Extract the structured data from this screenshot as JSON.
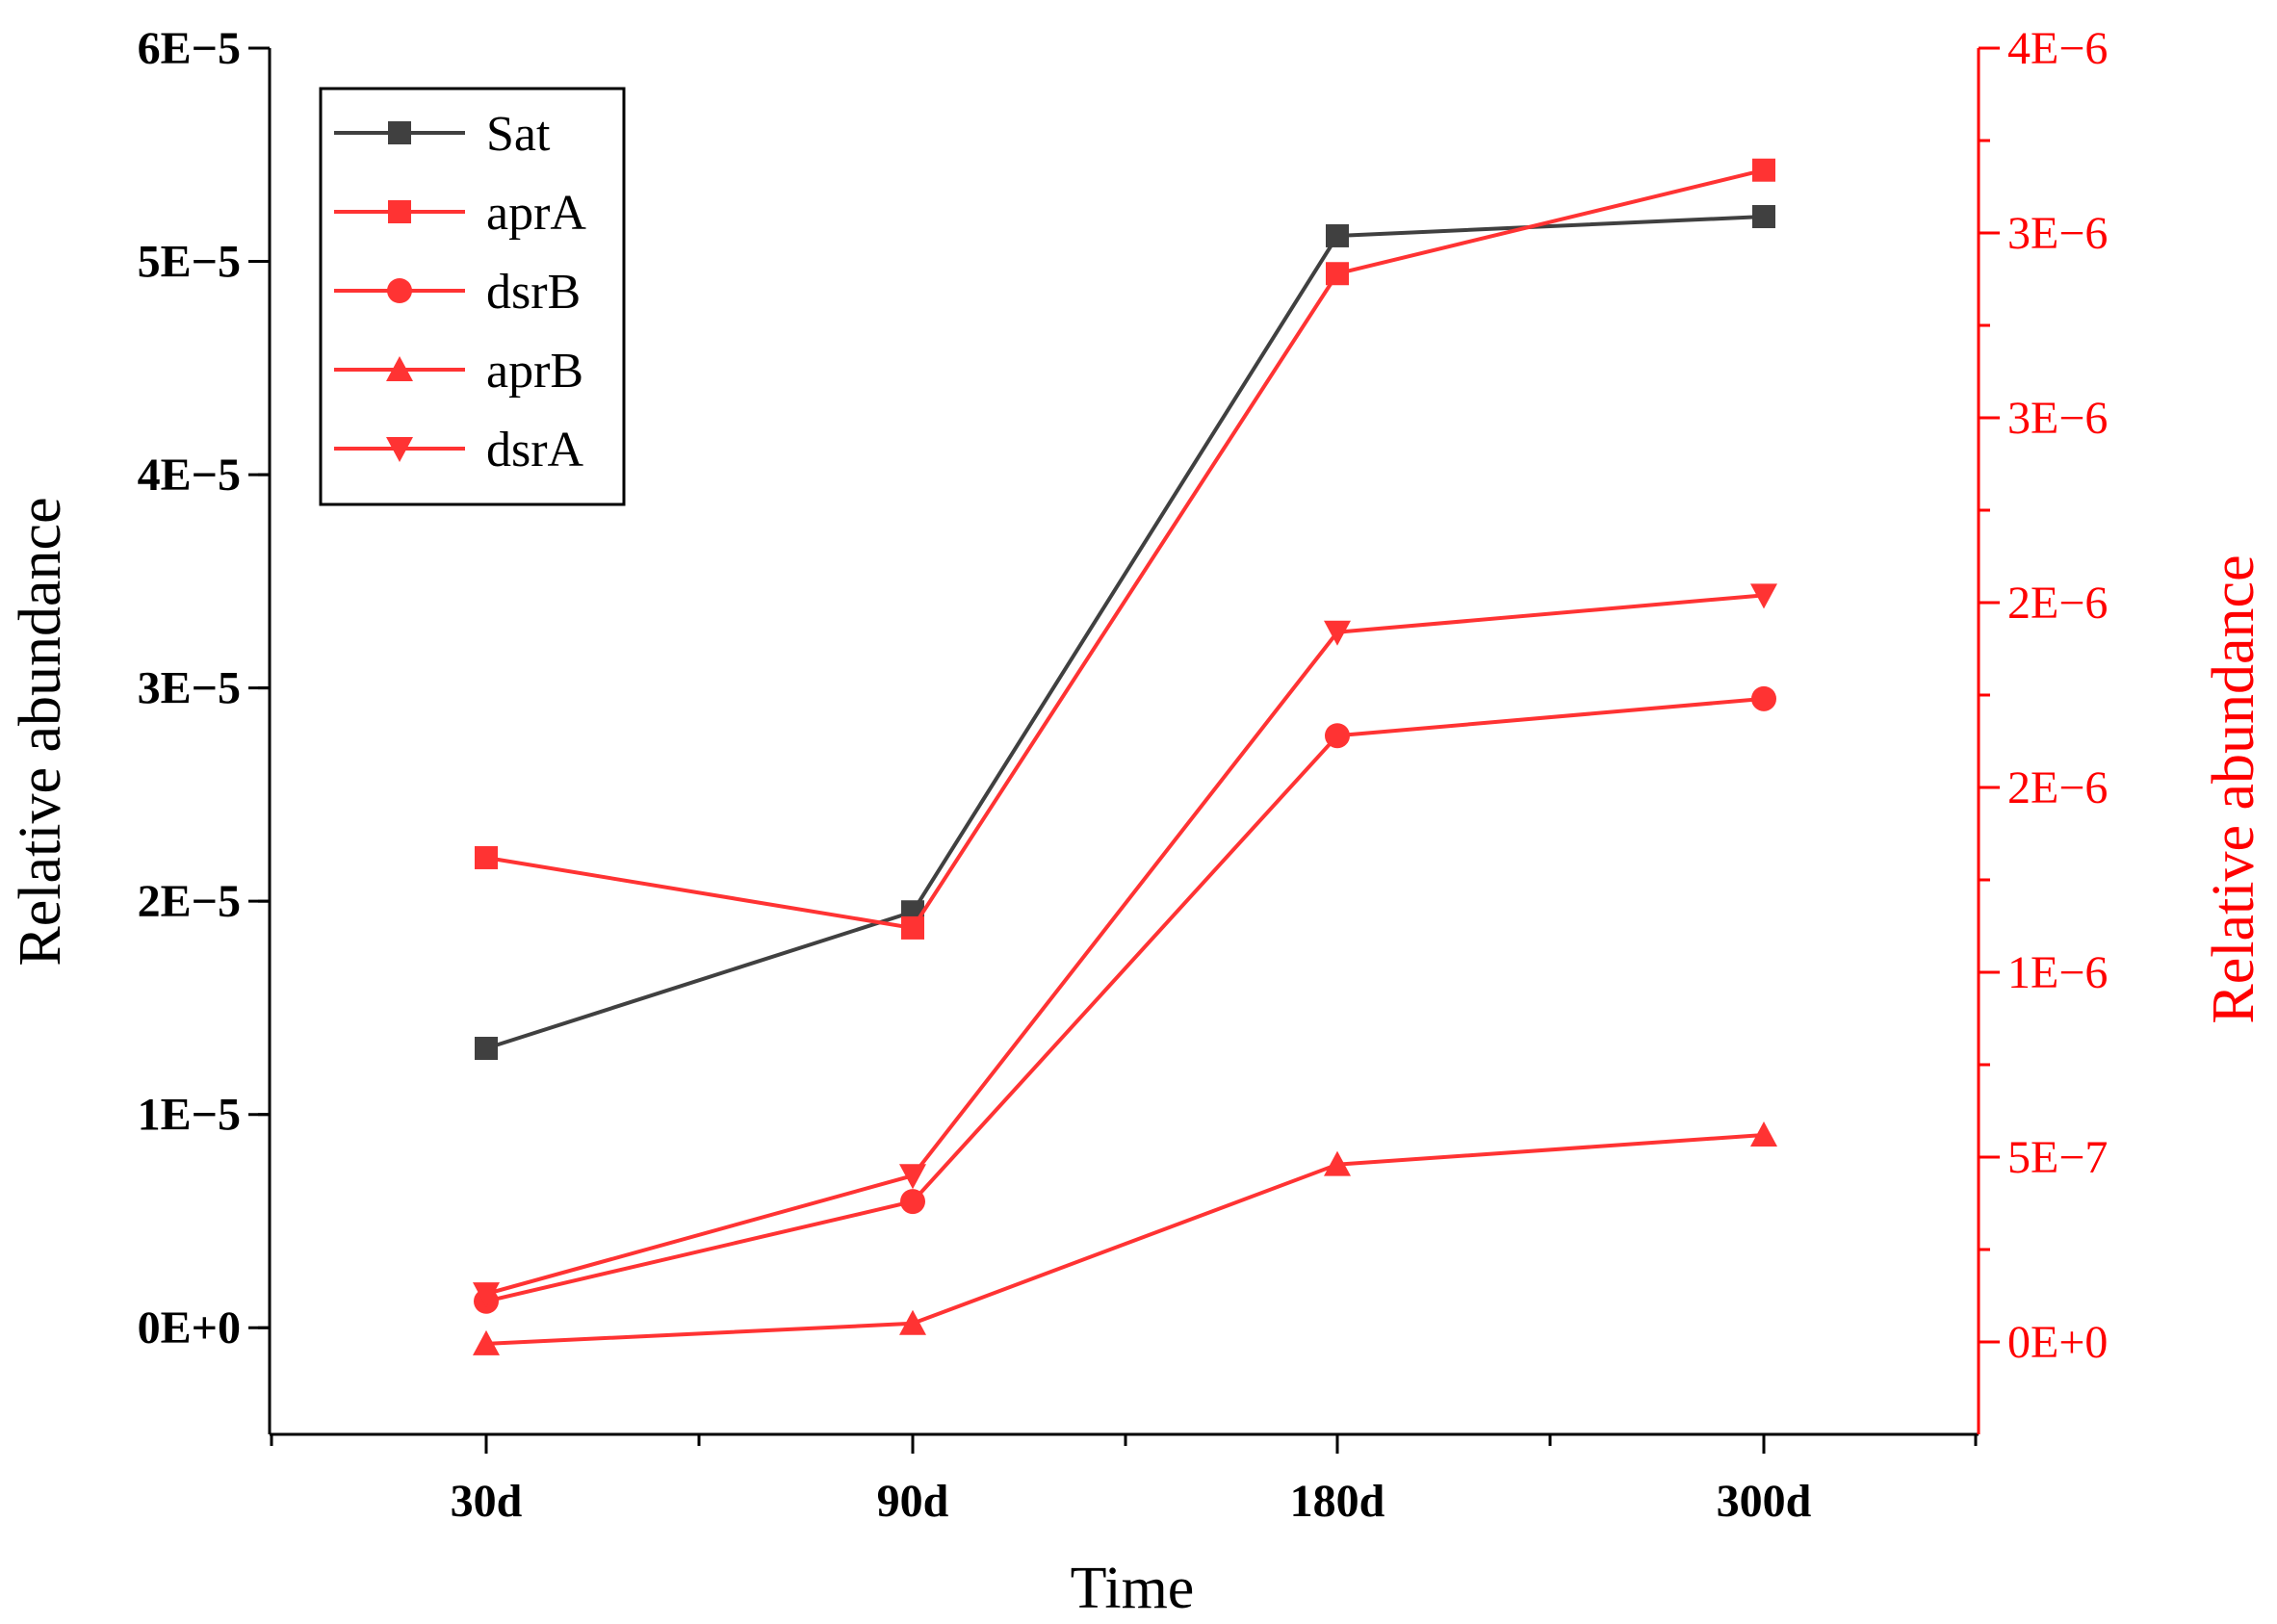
{
  "chart_data": {
    "type": "line",
    "categories": [
      "30d",
      "90d",
      "180d",
      "300d"
    ],
    "xlabel": "Time",
    "ylabel_left": "Relative abundance",
    "ylabel_right": "Relative abundance",
    "ylim_left": [
      -5e-06,
      6e-05
    ],
    "ylim_right": [
      -2.5e-07,
      3.5e-06
    ],
    "yticks_left": [
      {
        "value": 0,
        "label": "0E+0"
      },
      {
        "value": 1e-05,
        "label": "1E−5"
      },
      {
        "value": 2e-05,
        "label": "2E−5"
      },
      {
        "value": 3e-05,
        "label": "3E−5"
      },
      {
        "value": 4e-05,
        "label": "4E−5"
      },
      {
        "value": 5e-05,
        "label": "5E−5"
      },
      {
        "value": 6e-05,
        "label": "6E−5"
      }
    ],
    "yticks_right": [
      {
        "value": 0,
        "label": "0E+0"
      },
      {
        "value": 5e-07,
        "label": "5E−7"
      },
      {
        "value": 1e-06,
        "label": "1E−6"
      },
      {
        "value": 1.5e-06,
        "label": "2E−6"
      },
      {
        "value": 2e-06,
        "label": "2E−6"
      },
      {
        "value": 2.5e-06,
        "label": "3E−6"
      },
      {
        "value": 3e-06,
        "label": "3E−6"
      },
      {
        "value": 3.5e-06,
        "label": "4E−6"
      }
    ],
    "series": [
      {
        "name": "Sat",
        "axis": "left",
        "color": "#404040",
        "marker": "square",
        "values": [
          1.31e-05,
          1.95e-05,
          5.12e-05,
          5.21e-05
        ]
      },
      {
        "name": "aprA",
        "axis": "right",
        "color": "#ff3333",
        "marker": "square",
        "values": [
          1.31e-06,
          1.12e-06,
          2.89e-06,
          3.17e-06
        ]
      },
      {
        "name": "dsrB",
        "axis": "right",
        "color": "#ff3333",
        "marker": "circle",
        "values": [
          1.1e-07,
          3.8e-07,
          1.64e-06,
          1.74e-06
        ]
      },
      {
        "name": "aprB",
        "axis": "right",
        "color": "#ff3333",
        "marker": "triangle-up",
        "values": [
          -5e-09,
          5e-08,
          4.8e-07,
          5.6e-07
        ]
      },
      {
        "name": "dsrA",
        "axis": "right",
        "color": "#ff3333",
        "marker": "triangle-down",
        "values": [
          1.3e-07,
          4.5e-07,
          1.92e-06,
          2.02e-06
        ]
      }
    ],
    "legend_position": "top-left",
    "grid": false
  },
  "colors": {
    "left_axis": "#000000",
    "right_axis": "#ff0000",
    "sat": "#404040",
    "genes": "#ff3333"
  }
}
